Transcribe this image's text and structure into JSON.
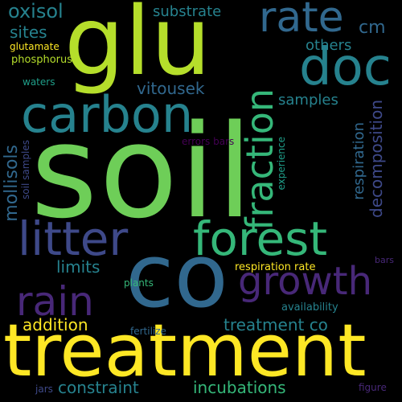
{
  "words": {
    "soil": "soil",
    "glu": "glu",
    "co": "co",
    "treatment": "treatment",
    "carbon": "carbon",
    "forest": "forest",
    "litter": "litter",
    "doc": "doc",
    "rate": "rate",
    "growth": "growth",
    "fraction": "fraction",
    "rain": "rain",
    "oxisol": "oxisol",
    "substrate": "substrate",
    "cm": "cm",
    "sites": "sites",
    "others": "others",
    "glutamate": "glutamate",
    "phosphorus": "phosphorus",
    "waters": "waters",
    "vitousek": "vitousek",
    "samples": "samples",
    "mollisols": "mollisols",
    "respiration": "respiration",
    "decomposition": "decomposition",
    "errors_bars": "errors bars",
    "soil_samples": "soil samples",
    "experience": "experience",
    "limits": "limits",
    "addition": "addition",
    "treatment_co": "treatment co",
    "respiration_rate": "respiration rate",
    "bars": "bars",
    "plants": "plants",
    "availability": "availability",
    "fertilize": "fertilize",
    "constraint": "constraint",
    "incubations": "incubations",
    "jars": "jars",
    "figure": "figure"
  },
  "colors": {
    "background": "#000000",
    "yellow": "#fde725",
    "lime": "#b5de2b",
    "green": "#6ece58",
    "emerald": "#35b779",
    "teal": "#1f9e89",
    "cyan": "#26828e",
    "blue": "#31688e",
    "indigo": "#3e4989",
    "purple": "#482878",
    "deep_purple": "#440154"
  }
}
